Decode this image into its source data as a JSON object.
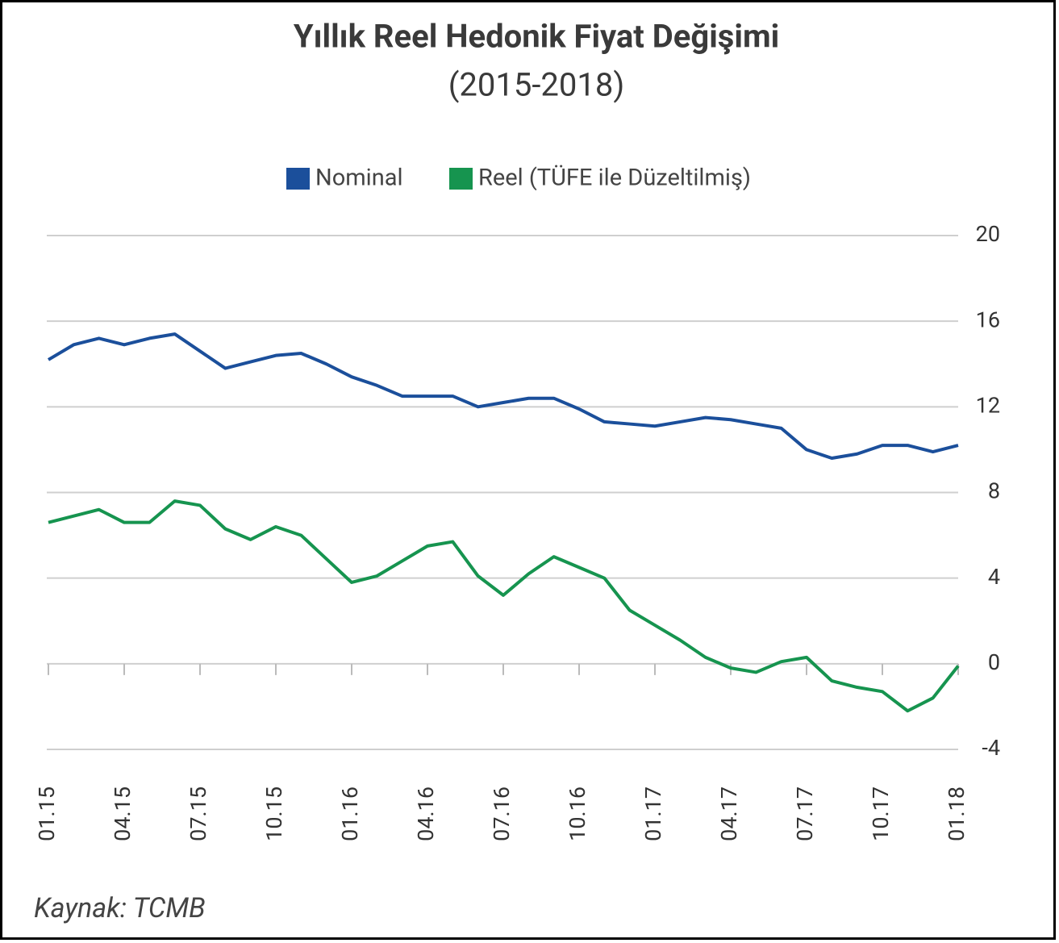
{
  "chart_data": {
    "type": "line",
    "title": "Yıllık Reel Hedonik Fiyat Değişimi",
    "subtitle": "(2015-2018)",
    "source": "Kaynak: TCMB",
    "categories": [
      "01.15",
      null,
      null,
      "04.15",
      null,
      null,
      "07.15",
      null,
      null,
      "10.15",
      null,
      null,
      "01.16",
      null,
      null,
      "04.16",
      null,
      null,
      "07.16",
      null,
      null,
      "10.16",
      null,
      null,
      "01.17",
      null,
      null,
      "04.17",
      null,
      null,
      "07.17",
      null,
      null,
      "10.17",
      null,
      null,
      "01.18"
    ],
    "series": [
      {
        "name": "Nominal",
        "color": "#1b4f9b",
        "values": [
          14.2,
          14.9,
          15.2,
          14.9,
          15.2,
          15.4,
          14.6,
          13.8,
          14.1,
          14.4,
          14.5,
          14.0,
          13.4,
          13.0,
          12.5,
          12.5,
          12.5,
          12.0,
          12.2,
          12.4,
          12.4,
          11.9,
          11.3,
          11.2,
          11.1,
          11.3,
          11.5,
          11.4,
          11.2,
          11.0,
          10.0,
          9.6,
          9.8,
          10.2,
          10.2,
          9.9,
          10.2
        ]
      },
      {
        "name": "Reel (TÜFE ile Düzeltilmiş)",
        "color": "#16944f",
        "values": [
          6.6,
          6.9,
          7.2,
          6.6,
          6.6,
          7.6,
          7.4,
          6.3,
          5.8,
          6.4,
          6.0,
          4.9,
          3.8,
          4.1,
          4.8,
          5.5,
          5.7,
          4.1,
          3.2,
          4.2,
          5.0,
          4.5,
          4.0,
          2.5,
          1.8,
          1.1,
          0.3,
          -0.2,
          -0.4,
          0.1,
          0.3,
          -0.8,
          -1.1,
          -1.3,
          -2.2,
          -1.6,
          -0.1
        ]
      }
    ],
    "ylim": [
      -4,
      20
    ],
    "yticks": [
      -4,
      0,
      4,
      8,
      12,
      16,
      20
    ],
    "grid": true
  }
}
